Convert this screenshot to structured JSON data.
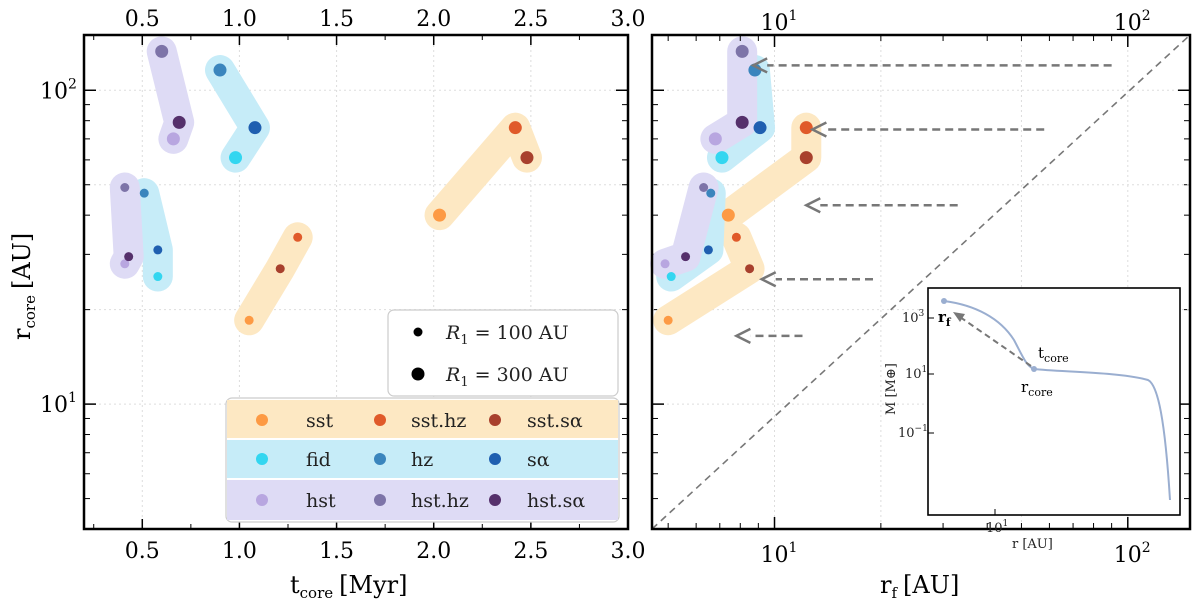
{
  "chart_data": [
    {
      "type": "scatter",
      "panel": "left",
      "xlabel": "t",
      "xlabel_sub": "core",
      "xlabel_unit": "[Myr]",
      "ylabel": "r",
      "ylabel_sub": "core",
      "ylabel_unit": "[AU]",
      "xlim": [
        0.2,
        3.0
      ],
      "ylim_log": [
        4,
        150
      ],
      "x_scale": "linear",
      "y_scale": "log",
      "x_ticks": [
        0.5,
        1.0,
        1.5,
        2.0,
        2.5,
        3.0
      ],
      "x_tick_labels": [
        "0.5",
        "1.0",
        "1.5",
        "2.0",
        "2.5",
        "3.0"
      ],
      "y_major_ticks": [
        10,
        100
      ],
      "y_tick_labels": [
        "10",
        "10"
      ],
      "y_tick_exponents": [
        "1",
        "2"
      ],
      "grid": true,
      "series": [
        {
          "name": "sst",
          "color": "#fd9a44",
          "size": "large",
          "x": 2.03,
          "y": 40
        },
        {
          "name": "sst.hz",
          "color": "#e05a2a",
          "size": "large",
          "x": 2.42,
          "y": 76
        },
        {
          "name": "sst.sα",
          "color": "#a8402d",
          "size": "large",
          "x": 2.48,
          "y": 61
        },
        {
          "name": "sst",
          "color": "#fd9a44",
          "size": "small",
          "x": 1.05,
          "y": 18.5
        },
        {
          "name": "sst.hz",
          "color": "#e05a2a",
          "size": "small",
          "x": 1.3,
          "y": 34
        },
        {
          "name": "sst.sα",
          "color": "#a8402d",
          "size": "small",
          "x": 1.21,
          "y": 27
        },
        {
          "name": "fid",
          "color": "#33d6f0",
          "size": "large",
          "x": 0.98,
          "y": 61
        },
        {
          "name": "hz",
          "color": "#3a85bd",
          "size": "large",
          "x": 0.9,
          "y": 116
        },
        {
          "name": "sα",
          "color": "#1f5fb0",
          "size": "large",
          "x": 1.08,
          "y": 76
        },
        {
          "name": "fid",
          "color": "#33d6f0",
          "size": "small",
          "x": 0.58,
          "y": 25.5
        },
        {
          "name": "hz",
          "color": "#3a85bd",
          "size": "small",
          "x": 0.51,
          "y": 47
        },
        {
          "name": "sα",
          "color": "#1f5fb0",
          "size": "small",
          "x": 0.58,
          "y": 31
        },
        {
          "name": "hst",
          "color": "#b8a6e0",
          "size": "large",
          "x": 0.66,
          "y": 70
        },
        {
          "name": "hst.hz",
          "color": "#7d74a8",
          "size": "large",
          "x": 0.6,
          "y": 133
        },
        {
          "name": "hst.sα",
          "color": "#55306b",
          "size": "large",
          "x": 0.69,
          "y": 79
        },
        {
          "name": "hst",
          "color": "#b8a6e0",
          "size": "small",
          "x": 0.41,
          "y": 28
        },
        {
          "name": "hst.hz",
          "color": "#7d74a8",
          "size": "small",
          "x": 0.41,
          "y": 49
        },
        {
          "name": "hst.sα",
          "color": "#55306b",
          "size": "small",
          "x": 0.43,
          "y": 29.5
        }
      ],
      "highlight_bands": [
        {
          "group": "sst",
          "color": "#fde8c3",
          "points": [
            [
              2.03,
              40
            ],
            [
              2.42,
              76
            ],
            [
              2.48,
              61
            ]
          ]
        },
        {
          "group": "sst",
          "color": "#fde8c3",
          "points": [
            [
              1.05,
              18.5
            ],
            [
              1.21,
              27
            ],
            [
              1.3,
              34
            ]
          ]
        },
        {
          "group": "fid",
          "color": "#c6ecf8",
          "points": [
            [
              0.9,
              116
            ],
            [
              1.08,
              76
            ],
            [
              0.98,
              61
            ]
          ]
        },
        {
          "group": "fid",
          "color": "#c6ecf8",
          "points": [
            [
              0.51,
              47
            ],
            [
              0.58,
              31
            ],
            [
              0.58,
              25.5
            ]
          ]
        },
        {
          "group": "hst",
          "color": "#dedbf5",
          "points": [
            [
              0.6,
              133
            ],
            [
              0.69,
              79
            ],
            [
              0.66,
              70
            ]
          ]
        },
        {
          "group": "hst",
          "color": "#dedbf5",
          "points": [
            [
              0.41,
              49
            ],
            [
              0.43,
              29.5
            ],
            [
              0.41,
              28
            ]
          ]
        }
      ]
    },
    {
      "type": "scatter",
      "panel": "right",
      "xlabel": "r",
      "xlabel_sub": "f",
      "xlabel_unit": "[AU]",
      "xlim_log": [
        4.5,
        150
      ],
      "ylim_log": [
        4,
        150
      ],
      "x_scale": "log",
      "y_scale": "log",
      "x_major_ticks": [
        10,
        100
      ],
      "x_tick_labels": [
        "10",
        "10"
      ],
      "x_tick_exponents": [
        "1",
        "2"
      ],
      "identity_line": true,
      "grid": true,
      "series": [
        {
          "name": "sst",
          "color": "#fd9a44",
          "size": "large",
          "x": 7.4,
          "y": 40
        },
        {
          "name": "sst.hz",
          "color": "#e05a2a",
          "size": "large",
          "x": 12.3,
          "y": 76
        },
        {
          "name": "sst.sα",
          "color": "#a8402d",
          "size": "large",
          "x": 12.3,
          "y": 61
        },
        {
          "name": "sst",
          "color": "#fd9a44",
          "size": "small",
          "x": 5.0,
          "y": 18.5
        },
        {
          "name": "sst.hz",
          "color": "#e05a2a",
          "size": "small",
          "x": 7.8,
          "y": 34
        },
        {
          "name": "sst.sα",
          "color": "#a8402d",
          "size": "small",
          "x": 8.5,
          "y": 27
        },
        {
          "name": "fid",
          "color": "#33d6f0",
          "size": "large",
          "x": 7.1,
          "y": 61
        },
        {
          "name": "hz",
          "color": "#3a85bd",
          "size": "large",
          "x": 8.8,
          "y": 116
        },
        {
          "name": "sα",
          "color": "#1f5fb0",
          "size": "large",
          "x": 9.1,
          "y": 76
        },
        {
          "name": "fid",
          "color": "#33d6f0",
          "size": "small",
          "x": 5.1,
          "y": 25.5
        },
        {
          "name": "hz",
          "color": "#3a85bd",
          "size": "small",
          "x": 6.6,
          "y": 47
        },
        {
          "name": "sα",
          "color": "#1f5fb0",
          "size": "small",
          "x": 6.5,
          "y": 31
        },
        {
          "name": "hst",
          "color": "#b8a6e0",
          "size": "large",
          "x": 6.8,
          "y": 70
        },
        {
          "name": "hst.hz",
          "color": "#7d74a8",
          "size": "large",
          "x": 8.1,
          "y": 133
        },
        {
          "name": "hst.sα",
          "color": "#55306b",
          "size": "large",
          "x": 8.1,
          "y": 79
        },
        {
          "name": "hst",
          "color": "#b8a6e0",
          "size": "small",
          "x": 4.9,
          "y": 28
        },
        {
          "name": "hst.hz",
          "color": "#7d74a8",
          "size": "small",
          "x": 6.3,
          "y": 49
        },
        {
          "name": "hst.sα",
          "color": "#55306b",
          "size": "small",
          "x": 5.6,
          "y": 29.5
        }
      ],
      "highlight_bands": [
        {
          "group": "sst",
          "color": "#fde8c3",
          "points": [
            [
              7.4,
              40
            ],
            [
              12.3,
              61
            ],
            [
              12.3,
              76
            ]
          ]
        },
        {
          "group": "sst",
          "color": "#fde8c3",
          "points": [
            [
              5.0,
              18.5
            ],
            [
              8.5,
              27
            ],
            [
              7.8,
              34
            ]
          ]
        },
        {
          "group": "fid",
          "color": "#c6ecf8",
          "points": [
            [
              7.1,
              61
            ],
            [
              9.1,
              76
            ],
            [
              8.8,
              116
            ]
          ]
        },
        {
          "group": "fid",
          "color": "#c6ecf8",
          "points": [
            [
              5.1,
              25.5
            ],
            [
              6.5,
              31
            ],
            [
              6.6,
              47
            ]
          ]
        },
        {
          "group": "hst",
          "color": "#dedbf5",
          "points": [
            [
              6.8,
              70
            ],
            [
              8.1,
              79
            ],
            [
              8.1,
              133
            ]
          ]
        },
        {
          "group": "hst",
          "color": "#dedbf5",
          "points": [
            [
              4.9,
              28
            ],
            [
              5.6,
              29.5
            ],
            [
              6.3,
              49
            ]
          ]
        }
      ],
      "arrows": [
        {
          "from": [
            90,
            120
          ],
          "to": [
            8.7,
            120
          ]
        },
        {
          "from": [
            58,
            75
          ],
          "to": [
            12.8,
            75
          ]
        },
        {
          "from": [
            33,
            43
          ],
          "to": [
            12.3,
            43
          ]
        },
        {
          "from": [
            19,
            25
          ],
          "to": [
            9.2,
            25
          ]
        },
        {
          "from": [
            12,
            16.5
          ],
          "to": [
            7.8,
            16.5
          ]
        }
      ]
    }
  ],
  "legend_sizes": [
    {
      "label_var": "R",
      "label_sub": "1",
      "label_rest": " = 100 AU",
      "size": "small"
    },
    {
      "label_var": "R",
      "label_sub": "1",
      "label_rest": " = 300 AU",
      "size": "large"
    }
  ],
  "legend_models": [
    {
      "rows": [
        {
          "name": "sst",
          "color": "#fd9a44"
        },
        {
          "name": "sst.hz",
          "color": "#e05a2a"
        },
        {
          "name": "sst.sα",
          "color": "#a8402d"
        }
      ],
      "band": "#fde8c3"
    },
    {
      "rows": [
        {
          "name": "fid",
          "color": "#33d6f0"
        },
        {
          "name": "hz",
          "color": "#3a85bd"
        },
        {
          "name": "sα",
          "color": "#1f5fb0"
        }
      ],
      "band": "#c6ecf8"
    },
    {
      "rows": [
        {
          "name": "hst",
          "color": "#b8a6e0"
        },
        {
          "name": "hst.hz",
          "color": "#7d74a8"
        },
        {
          "name": "hst.sα",
          "color": "#55306b"
        }
      ],
      "band": "#dedbf5"
    }
  ],
  "inset": {
    "ylabel": "M [M⊕]",
    "xlabel": "r [AU]",
    "y_tick_labels": [
      "10",
      "10",
      "10"
    ],
    "y_tick_exponents": [
      "3",
      "1",
      "−1"
    ],
    "x_tick_label": "10",
    "x_tick_exponent": "1",
    "annotation_rf": "r",
    "annotation_rf_sub": "f",
    "annotation_tcore": "t",
    "annotation_tcore_sub": "core",
    "annotation_rcore": "r",
    "annotation_rcore_sub": "core",
    "curve_color": "#9aaed0"
  }
}
